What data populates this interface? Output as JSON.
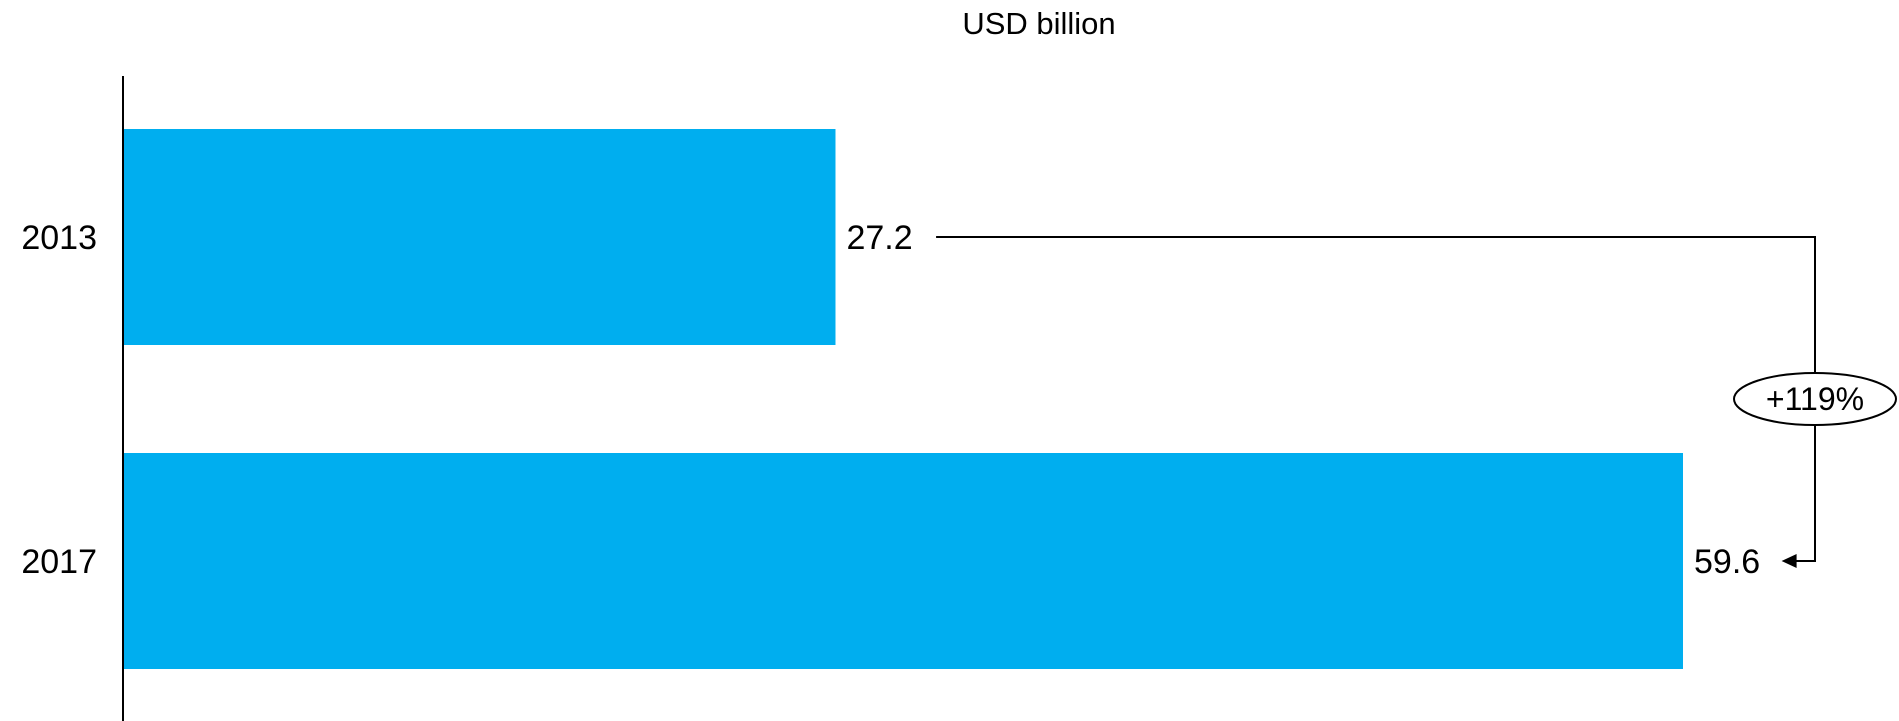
{
  "chart_data": {
    "type": "bar",
    "orientation": "horizontal",
    "unit_label": "USD billion",
    "categories": [
      "2013",
      "2017"
    ],
    "values": [
      27.2,
      59.6
    ],
    "value_labels": [
      "27.2",
      "59.6"
    ],
    "xlim": [
      0,
      59.6
    ],
    "grid": false,
    "bar_color": "#00AEEF",
    "annotation": {
      "text": "+119%",
      "from": "2013",
      "to": "2017"
    }
  }
}
